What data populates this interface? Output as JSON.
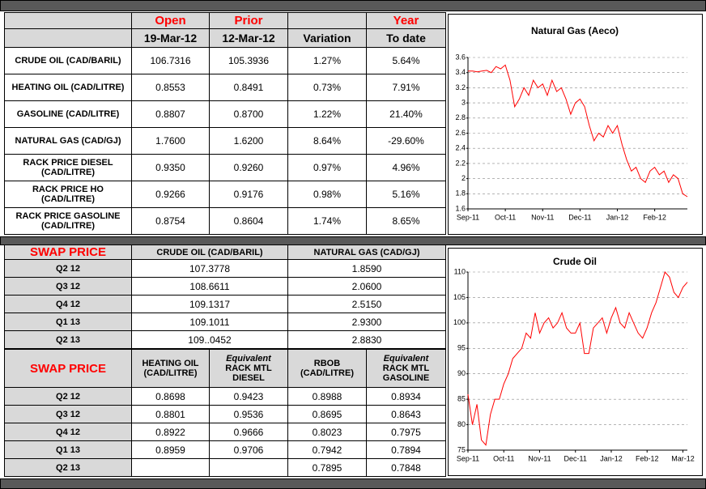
{
  "top_table": {
    "header_top": [
      "Open",
      "Prior",
      "Year"
    ],
    "header_sub": [
      "19-Mar-12",
      "12-Mar-12",
      "Variation",
      "To date"
    ],
    "rows": [
      [
        "CRUDE OIL (CAD/BARIL)",
        "106.7316",
        "105.3936",
        "1.27%",
        "5.64%"
      ],
      [
        "HEATING OIL (CAD/LITRE)",
        "0.8553",
        "0.8491",
        "0.73%",
        "7.91%"
      ],
      [
        "GASOLINE (CAD/LITRE)",
        "0.8807",
        "0.8700",
        "1.22%",
        "21.40%"
      ],
      [
        "NATURAL GAS (CAD/GJ)",
        "1.7600",
        "1.6200",
        "8.64%",
        "-29.60%"
      ],
      [
        "RACK PRICE DIESEL (CAD/LITRE)",
        "0.9350",
        "0.9260",
        "0.97%",
        "4.96%"
      ],
      [
        "RACK PRICE HO (CAD/LITRE)",
        "0.9266",
        "0.9176",
        "0.98%",
        "5.16%"
      ],
      [
        "RACK PRICE GASOLINE (CAD/LITRE)",
        "0.8754",
        "0.8604",
        "1.74%",
        "8.65%"
      ]
    ]
  },
  "swap_table_1": {
    "title": "SWAP PRICE",
    "columns": [
      "CRUDE OIL (CAD/BARIL)",
      "NATURAL GAS (CAD/GJ)"
    ],
    "rows": [
      [
        "Q2 12",
        "107.3778",
        "1.8590"
      ],
      [
        "Q3 12",
        "108.6611",
        "2.0600"
      ],
      [
        "Q4 12",
        "109.1317",
        "2.5150"
      ],
      [
        "Q1 13",
        "109.1011",
        "2.9300"
      ],
      [
        "Q2 13",
        "109..0452",
        "2.8830"
      ]
    ]
  },
  "swap_table_2": {
    "title": "SWAP PRICE",
    "columns": [
      {
        "label": "HEATING OIL (CAD/LITRE)"
      },
      {
        "note": "Equivalent",
        "label": "RACK MTL DIESEL"
      },
      {
        "label": "RBOB (CAD/LITRE)"
      },
      {
        "note": "Equivalent",
        "label": "RACK MTL GASOLINE"
      }
    ],
    "rows": [
      [
        "Q2 12",
        "0.8698",
        "0.9423",
        "0.8988",
        "0.8934"
      ],
      [
        "Q3 12",
        "0.8801",
        "0.9536",
        "0.8695",
        "0.8643"
      ],
      [
        "Q4 12",
        "0.8922",
        "0.9666",
        "0.8023",
        "0.7975"
      ],
      [
        "Q1 13",
        "0.8959",
        "0.9706",
        "0.7942",
        "0.7894"
      ],
      [
        "Q2 13",
        null,
        null,
        "0.7895",
        "0.7848"
      ]
    ]
  },
  "chart_data": [
    {
      "type": "line",
      "title": "Natural Gas (Aeco)",
      "categories": [
        "Sep-11",
        null,
        null,
        null,
        null,
        null,
        null,
        null,
        "Oct-11",
        null,
        null,
        null,
        null,
        null,
        null,
        null,
        "Nov-11",
        null,
        null,
        null,
        null,
        null,
        null,
        null,
        "Dec-11",
        null,
        null,
        null,
        null,
        null,
        null,
        null,
        "Jan-12",
        null,
        null,
        null,
        null,
        null,
        null,
        null,
        "Feb-12",
        null,
        null,
        null,
        null,
        null,
        null,
        null
      ],
      "series": [
        {
          "color": "#ff0000",
          "values": [
            3.42,
            3.42,
            3.41,
            3.42,
            3.43,
            3.4,
            3.48,
            3.45,
            3.5,
            3.3,
            2.95,
            3.05,
            3.2,
            3.1,
            3.3,
            3.2,
            3.25,
            3.1,
            3.3,
            3.15,
            3.2,
            3.05,
            2.85,
            3.0,
            3.05,
            2.95,
            2.7,
            2.5,
            2.6,
            2.55,
            2.7,
            2.6,
            2.7,
            2.45,
            2.25,
            2.1,
            2.15,
            2.0,
            1.95,
            2.1,
            2.15,
            2.05,
            2.1,
            1.95,
            2.05,
            2.0,
            1.8,
            1.76
          ]
        }
      ],
      "ylim": [
        1.6,
        3.6
      ],
      "yticks": [
        1.6,
        1.8,
        2,
        2.2,
        2.4,
        2.6,
        2.8,
        3,
        3.2,
        3.4,
        3.6
      ],
      "grid": true
    },
    {
      "type": "line",
      "title": "Crude Oil",
      "categories": [
        "Sep-11",
        null,
        null,
        null,
        null,
        null,
        null,
        null,
        "Oct-11",
        null,
        null,
        null,
        null,
        null,
        null,
        null,
        "Nov-11",
        null,
        null,
        null,
        null,
        null,
        null,
        null,
        "Dec-11",
        null,
        null,
        null,
        null,
        null,
        null,
        null,
        "Jan-12",
        null,
        null,
        null,
        null,
        null,
        null,
        null,
        "Feb-12",
        null,
        null,
        null,
        null,
        null,
        null,
        null,
        "Mar-12",
        null
      ],
      "series": [
        {
          "color": "#ff0000",
          "values": [
            86,
            80,
            84,
            77,
            76,
            82,
            85,
            85,
            88,
            90,
            93,
            94,
            95,
            98,
            97,
            102,
            98,
            100,
            101,
            99,
            100,
            102,
            99,
            98,
            98,
            100,
            94,
            94,
            99,
            100,
            101,
            98,
            101,
            103,
            100,
            99,
            102,
            100,
            98,
            97,
            99,
            102,
            104,
            107,
            110,
            109,
            106,
            105,
            107,
            108
          ]
        }
      ],
      "ylim": [
        75,
        110
      ],
      "yticks": [
        75,
        80,
        85,
        90,
        95,
        100,
        105,
        110
      ],
      "grid": true
    }
  ]
}
